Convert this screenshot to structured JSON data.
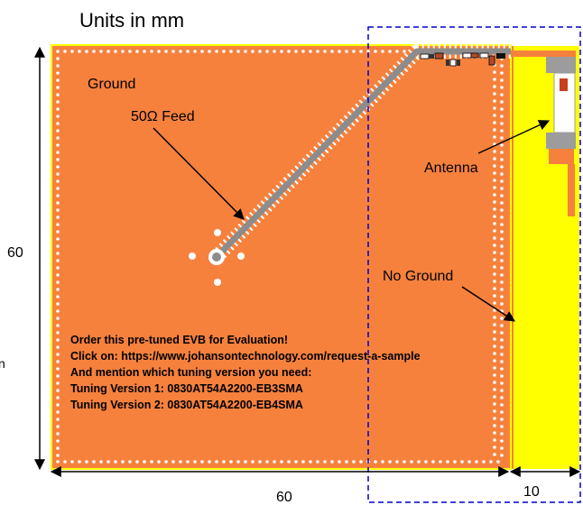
{
  "units_title": "Units in mm",
  "labels": {
    "ground": "Ground",
    "feed": "50Ω Feed",
    "antenna": "Antenna",
    "no_ground": "No Ground"
  },
  "dimensions": {
    "height": "60",
    "width": "60",
    "antenna_region": "10"
  },
  "note_lines": [
    "Order this pre-tuned EVB for Evaluation!",
    "Click on: https://www.johansontechnology.com/request-a-sample",
    "And mention which tuning version you need:",
    "Tuning Version 1: 0830AT54A2200-EB3SMA",
    "Tuning Version 2: 0830AT54A2200-EB4SMA"
  ],
  "stray_left_char": "n",
  "colors": {
    "ground_plane": "#F6813D",
    "no_ground_region": "#FFFF00",
    "feed_line": "#8C8C8C",
    "antenna_outline": "#0000CC",
    "arrow": "#000000",
    "via": "#FFFFFF"
  }
}
